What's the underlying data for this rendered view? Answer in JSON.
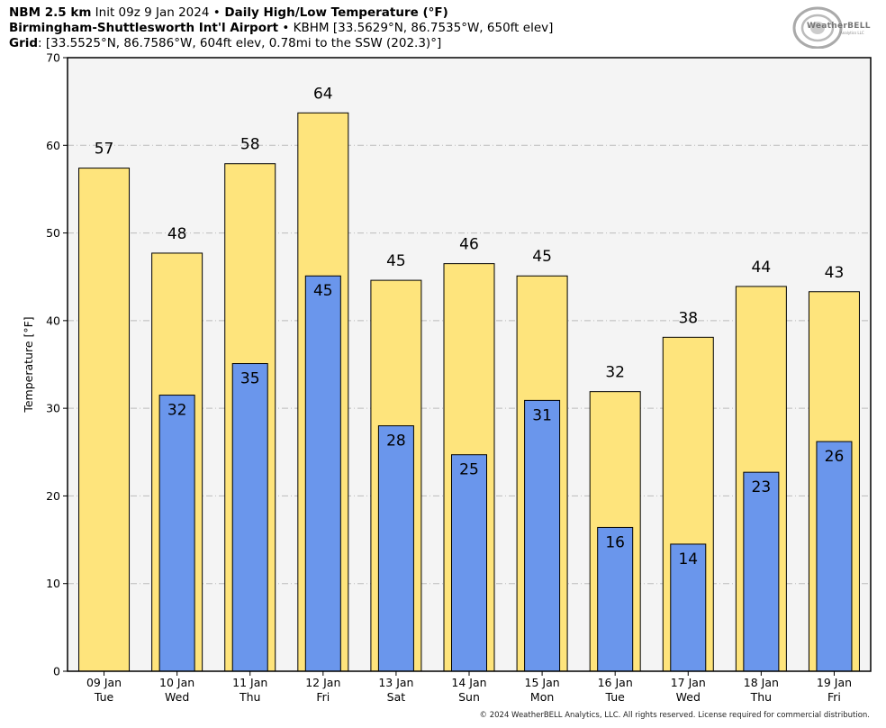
{
  "header": {
    "line1_bold": "NBM 2.5 km",
    "line1_init": " Init 09z 9 Jan 2024 ",
    "line1_sep": "•",
    "line1_title": " Daily High/Low Temperature (°F)",
    "line2_bold": "Birmingham-Shuttlesworth Int'l Airport",
    "line2_rest": " • KBHM [33.5629°N, 86.7535°W, 650ft elev]",
    "line3_bold": "Grid",
    "line3_rest": ": [33.5525°N, 86.7586°W, 604ft elev, 0.78mi to the SSW (202.3)°]"
  },
  "logo": {
    "text": "WeatherBELL",
    "sub": "Analytics LLC",
    "icon": "swirl-logo"
  },
  "footer": "© 2024 WeatherBELL Analytics, LLC. All rights reserved. License required for commercial distribution.",
  "colors": {
    "high": "#fee47c",
    "low": "#6a96ec",
    "plot_bg": "#f4f4f4",
    "grid": "#bbbbbb"
  },
  "chart_data": {
    "type": "bar",
    "ylabel": "Temperature [°F]",
    "ylim": [
      0,
      70
    ],
    "yticks": [
      0,
      10,
      20,
      30,
      40,
      50,
      60,
      70
    ],
    "grid": true,
    "categories": [
      "09 Jan",
      "10 Jan",
      "11 Jan",
      "12 Jan",
      "13 Jan",
      "14 Jan",
      "15 Jan",
      "16 Jan",
      "17 Jan",
      "18 Jan",
      "19 Jan"
    ],
    "weekdays": [
      "Tue",
      "Wed",
      "Thu",
      "Fri",
      "Sat",
      "Sun",
      "Mon",
      "Tue",
      "Wed",
      "Thu",
      "Fri"
    ],
    "series": [
      {
        "name": "High",
        "values": [
          57.4,
          47.7,
          57.9,
          63.7,
          44.6,
          46.5,
          45.1,
          31.9,
          38.1,
          43.9,
          43.3
        ],
        "labels": [
          "57",
          "48",
          "58",
          "64",
          "45",
          "46",
          "45",
          "32",
          "38",
          "44",
          "43"
        ]
      },
      {
        "name": "Low",
        "values": [
          null,
          31.5,
          35.1,
          45.1,
          28.0,
          24.7,
          30.9,
          16.4,
          14.5,
          22.7,
          26.2
        ],
        "labels": [
          "",
          "32",
          "35",
          "45",
          "28",
          "25",
          "31",
          "16",
          "14",
          "23",
          "26"
        ]
      }
    ]
  }
}
